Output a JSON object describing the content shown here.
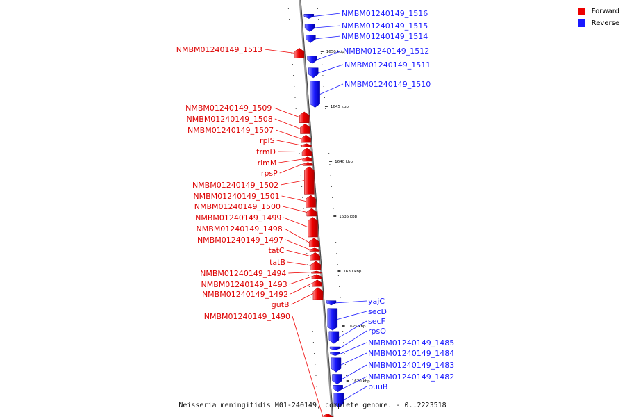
{
  "colors": {
    "forward": "#ee0000",
    "reverse": "#1a1aff",
    "backbone": "#888888",
    "backbone_dark": "#555555"
  },
  "legend": {
    "forward_label": "Forward",
    "reverse_label": "Reverse"
  },
  "caption": "Neisseria meningitidis M01-240149, complete genome. - 0..2223518",
  "reverse_genes": [
    {
      "name": "NMBM01240149_1516",
      "start": 1653.4,
      "end": 1653.0,
      "icon": "arrow-head-icon"
    },
    {
      "name": "NMBM01240149_1515",
      "start": 1652.5,
      "end": 1651.8
    },
    {
      "name": "NMBM01240149_1514",
      "start": 1651.5,
      "end": 1650.8
    },
    {
      "name": "NMBM01240149_1512",
      "start": 1649.6,
      "end": 1648.9
    },
    {
      "name": "NMBM01240149_1511",
      "start": 1648.5,
      "end": 1647.6
    },
    {
      "name": "NMBM01240149_1510",
      "start": 1647.3,
      "end": 1644.9
    },
    {
      "name": "yajC",
      "start": 1627.3,
      "end": 1626.9
    },
    {
      "name": "secD",
      "start": 1626.6,
      "end": 1624.6
    },
    {
      "name": "secF",
      "start": 1624.5,
      "end": 1623.4
    },
    {
      "name": "rpsO",
      "start": 1623.1,
      "end": 1622.8
    },
    {
      "name": "NMBM01240149_1485",
      "start": 1622.6,
      "end": 1622.3
    },
    {
      "name": "NMBM01240149_1484",
      "start": 1622.1,
      "end": 1620.8
    },
    {
      "name": "NMBM01240149_1483",
      "start": 1620.6,
      "end": 1619.7
    },
    {
      "name": "NMBM01240149_1482",
      "start": 1619.6,
      "end": 1619.0
    },
    {
      "name": "puuB",
      "start": 1618.9,
      "end": 1617.6
    }
  ],
  "forward_genes": [
    {
      "name": "NMBM01240149_1513",
      "start": 1649.4,
      "end": 1650.3
    },
    {
      "name": "NMBM01240149_1509",
      "start": 1643.5,
      "end": 1644.5
    },
    {
      "name": "NMBM01240149_1508",
      "start": 1642.5,
      "end": 1643.4
    },
    {
      "name": "NMBM01240149_1507",
      "start": 1641.7,
      "end": 1642.4
    },
    {
      "name": "rplS",
      "start": 1641.3,
      "end": 1641.6
    },
    {
      "name": "trmD",
      "start": 1640.5,
      "end": 1641.2
    },
    {
      "name": "rimM",
      "start": 1640.0,
      "end": 1640.4
    },
    {
      "name": "rpsP",
      "start": 1639.6,
      "end": 1639.9
    },
    {
      "name": "NMBM01240149_1502",
      "start": 1637.0,
      "end": 1639.5
    },
    {
      "name": "NMBM01240149_1501",
      "start": 1635.8,
      "end": 1636.9
    },
    {
      "name": "NMBM01240149_1500",
      "start": 1635.0,
      "end": 1635.7
    },
    {
      "name": "NMBM01240149_1499",
      "start": 1633.1,
      "end": 1634.9
    },
    {
      "name": "NMBM01240149_1498",
      "start": 1632.2,
      "end": 1633.0
    },
    {
      "name": "NMBM01240149_1497",
      "start": 1631.8,
      "end": 1632.1
    },
    {
      "name": "tatC",
      "start": 1631.0,
      "end": 1631.7
    },
    {
      "name": "tatB",
      "start": 1630.1,
      "end": 1630.9
    },
    {
      "name": "NMBM01240149_1494",
      "start": 1629.8,
      "end": 1630.0
    },
    {
      "name": "NMBM01240149_1493",
      "start": 1629.3,
      "end": 1629.7
    },
    {
      "name": "NMBM01240149_1492",
      "start": 1628.6,
      "end": 1629.2
    },
    {
      "name": "gutB",
      "start": 1627.4,
      "end": 1628.5
    },
    {
      "name": "NMBM01240149_1490",
      "start": 1616.6,
      "end": 1617.0
    }
  ],
  "ticks": [
    {
      "label": "1650 kbp",
      "value": 1650
    },
    {
      "label": "1645 kbp",
      "value": 1645
    },
    {
      "label": "1640 kbp",
      "value": 1640
    },
    {
      "label": "1635 kbp",
      "value": 1635
    },
    {
      "label": "1630 kbp",
      "value": 1630
    },
    {
      "label": "1625 kbp",
      "value": 1625
    },
    {
      "label": "1620 kbp",
      "value": 1620
    }
  ]
}
